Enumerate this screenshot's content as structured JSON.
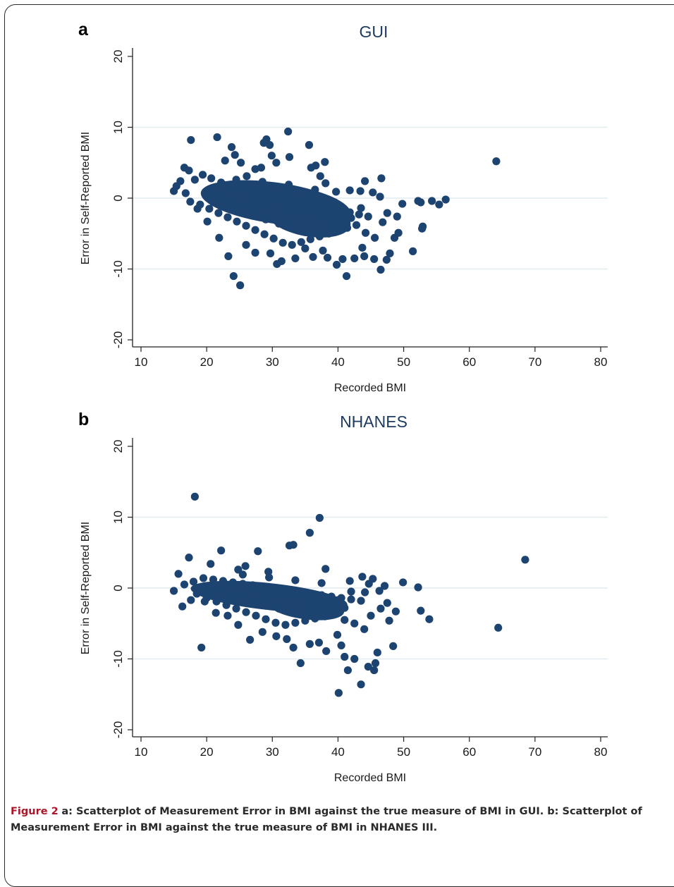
{
  "caption": {
    "figure_label": "Figure 2",
    "text": "a: Scatterplot of Measurement Error in BMI against the true measure of BMI in GUI. b: Scatterplot of Measurement Error in BMI against the true measure of BMI in NHANES III."
  },
  "colors": {
    "marker": "#1d4470",
    "title": "#1d3a5f",
    "grid": "#e2ecef",
    "figure_label": "#a8182a"
  },
  "chart_data": [
    {
      "type": "scatter",
      "panel_label": "a",
      "title": "GUI",
      "xlabel": "Recorded BMI",
      "ylabel": "Error in Self-Reported BMI",
      "xlim": [
        10,
        80
      ],
      "ylim": [
        -20,
        20
      ],
      "xticks": [
        10,
        20,
        30,
        40,
        50,
        60,
        70,
        80
      ],
      "yticks": [
        -20,
        -10,
        0,
        10,
        20
      ],
      "grid": "horizontal at y ticks",
      "points": [
        [
          15.0,
          1.0
        ],
        [
          15.4,
          1.7
        ],
        [
          16.0,
          2.4
        ],
        [
          16.6,
          4.3
        ],
        [
          17.3,
          3.9
        ],
        [
          17.6,
          8.2
        ],
        [
          21.6,
          8.6
        ],
        [
          22.8,
          5.3
        ],
        [
          23.8,
          7.2
        ],
        [
          24.3,
          6.1
        ],
        [
          25.2,
          5.0
        ],
        [
          26.1,
          3.1
        ],
        [
          27.4,
          4.1
        ],
        [
          28.3,
          4.3
        ],
        [
          28.7,
          7.8
        ],
        [
          29.1,
          8.3
        ],
        [
          29.6,
          7.5
        ],
        [
          29.9,
          6.0
        ],
        [
          30.6,
          5.0
        ],
        [
          32.4,
          9.4
        ],
        [
          32.6,
          5.8
        ],
        [
          35.6,
          7.5
        ],
        [
          35.9,
          4.3
        ],
        [
          36.6,
          4.6
        ],
        [
          37.3,
          3.1
        ],
        [
          38.0,
          5.1
        ],
        [
          38.1,
          2.1
        ],
        [
          39.7,
          0.9
        ],
        [
          41.8,
          1.1
        ],
        [
          43.4,
          1.0
        ],
        [
          44.1,
          2.4
        ],
        [
          45.3,
          0.8
        ],
        [
          46.4,
          0.2
        ],
        [
          46.6,
          2.8
        ],
        [
          47.5,
          -2.1
        ],
        [
          49.0,
          -2.6
        ],
        [
          49.8,
          -0.8
        ],
        [
          52.2,
          -0.4
        ],
        [
          52.6,
          -0.6
        ],
        [
          52.8,
          -4.3
        ],
        [
          52.9,
          -4.0
        ],
        [
          54.3,
          -0.4
        ],
        [
          55.4,
          -0.9
        ],
        [
          56.4,
          -0.2
        ],
        [
          64.1,
          5.2
        ],
        [
          51.4,
          -7.5
        ],
        [
          49.2,
          -4.9
        ],
        [
          48.6,
          -5.6
        ],
        [
          47.9,
          -7.8
        ],
        [
          47.4,
          -8.7
        ],
        [
          46.5,
          -10.1
        ],
        [
          45.5,
          -8.6
        ],
        [
          44.0,
          -8.2
        ],
        [
          43.7,
          -7.0
        ],
        [
          42.5,
          -8.5
        ],
        [
          41.3,
          -11.0
        ],
        [
          40.7,
          -8.6
        ],
        [
          39.8,
          -9.4
        ],
        [
          38.4,
          -8.4
        ],
        [
          37.7,
          -7.4
        ],
        [
          36.2,
          -8.3
        ],
        [
          35.0,
          -7.1
        ],
        [
          33.5,
          -8.5
        ],
        [
          31.4,
          -8.9
        ],
        [
          30.7,
          -9.3
        ],
        [
          29.7,
          -7.8
        ],
        [
          27.4,
          -7.7
        ],
        [
          26.0,
          -6.6
        ],
        [
          24.1,
          -11.0
        ],
        [
          25.1,
          -12.3
        ],
        [
          23.3,
          -8.2
        ],
        [
          21.9,
          -5.6
        ],
        [
          20.1,
          -3.3
        ],
        [
          18.6,
          -1.5
        ],
        [
          17.5,
          -0.5
        ],
        [
          16.8,
          0.7
        ],
        [
          18.2,
          2.6
        ],
        [
          19.4,
          3.3
        ],
        [
          20.7,
          2.8
        ],
        [
          22.2,
          2.2
        ],
        [
          23.6,
          1.9
        ],
        [
          25.0,
          1.6
        ],
        [
          26.4,
          1.3
        ],
        [
          27.8,
          1.0
        ],
        [
          29.2,
          0.7
        ],
        [
          30.6,
          0.4
        ],
        [
          32.0,
          0.1
        ],
        [
          33.4,
          -0.2
        ],
        [
          34.8,
          -0.5
        ],
        [
          36.2,
          -0.8
        ],
        [
          37.6,
          -1.1
        ],
        [
          39.0,
          -1.4
        ],
        [
          40.4,
          -1.7
        ],
        [
          41.8,
          -2.0
        ],
        [
          43.2,
          -2.3
        ],
        [
          44.6,
          -2.6
        ],
        [
          19.0,
          -0.9
        ],
        [
          20.4,
          -1.5
        ],
        [
          21.8,
          -2.1
        ],
        [
          23.2,
          -2.7
        ],
        [
          24.6,
          -3.3
        ],
        [
          26.0,
          -3.9
        ],
        [
          27.4,
          -4.5
        ],
        [
          28.8,
          -5.1
        ],
        [
          30.2,
          -5.7
        ],
        [
          31.6,
          -6.3
        ],
        [
          33.0,
          -6.6
        ],
        [
          34.4,
          -6.2
        ],
        [
          35.8,
          -5.8
        ],
        [
          37.2,
          -5.4
        ],
        [
          38.6,
          -5.0
        ],
        [
          40.0,
          -4.6
        ],
        [
          41.4,
          -4.2
        ],
        [
          42.8,
          -3.8
        ],
        [
          44.2,
          -4.9
        ],
        [
          45.6,
          -5.6
        ],
        [
          46.8,
          -3.4
        ],
        [
          20.0,
          0.5
        ],
        [
          22.0,
          0.2
        ],
        [
          24.0,
          -0.1
        ],
        [
          26.0,
          -0.4
        ],
        [
          28.0,
          -0.7
        ],
        [
          30.0,
          -1.0
        ],
        [
          32.0,
          -1.3
        ],
        [
          34.0,
          -1.6
        ],
        [
          36.0,
          -1.9
        ],
        [
          38.0,
          -2.2
        ],
        [
          40.0,
          -2.5
        ],
        [
          42.0,
          -2.8
        ],
        [
          21.0,
          -0.6
        ],
        [
          23.0,
          -1.2
        ],
        [
          25.0,
          -1.8
        ],
        [
          27.0,
          -2.4
        ],
        [
          29.0,
          -3.0
        ],
        [
          31.0,
          -3.6
        ],
        [
          33.0,
          -4.2
        ],
        [
          35.0,
          -4.8
        ],
        [
          37.0,
          -3.4
        ],
        [
          39.0,
          -3.0
        ],
        [
          41.0,
          -3.7
        ],
        [
          20.5,
          1.3
        ],
        [
          24.5,
          2.6
        ],
        [
          28.5,
          2.3
        ],
        [
          32.5,
          1.9
        ],
        [
          36.5,
          1.2
        ],
        [
          27.0,
          0.8
        ],
        [
          31.5,
          -0.2
        ],
        [
          35.5,
          0.3
        ],
        [
          39.5,
          -0.6
        ],
        [
          43.5,
          -1.4
        ]
      ]
    },
    {
      "type": "scatter",
      "panel_label": "b",
      "title": "NHANES",
      "xlabel": "Recorded BMI",
      "ylabel": "Error in Self-Reported BMI",
      "xlim": [
        10,
        80
      ],
      "ylim": [
        -20,
        20
      ],
      "xticks": [
        10,
        20,
        30,
        40,
        50,
        60,
        70,
        80
      ],
      "yticks": [
        -20,
        -10,
        0,
        10,
        20
      ],
      "grid": "horizontal at y ticks",
      "points": [
        [
          15.0,
          -0.4
        ],
        [
          15.7,
          2.0
        ],
        [
          16.3,
          -2.6
        ],
        [
          17.3,
          4.3
        ],
        [
          17.6,
          -1.7
        ],
        [
          18.2,
          12.9
        ],
        [
          19.2,
          -8.4
        ],
        [
          20.6,
          3.4
        ],
        [
          22.2,
          5.3
        ],
        [
          24.8,
          2.6
        ],
        [
          25.9,
          3.1
        ],
        [
          27.8,
          5.2
        ],
        [
          29.4,
          2.3
        ],
        [
          32.6,
          6.0
        ],
        [
          33.2,
          6.1
        ],
        [
          35.7,
          7.8
        ],
        [
          37.2,
          9.9
        ],
        [
          38.1,
          2.7
        ],
        [
          41.8,
          1.0
        ],
        [
          43.7,
          1.6
        ],
        [
          44.1,
          -0.6
        ],
        [
          44.7,
          0.6
        ],
        [
          45.3,
          1.3
        ],
        [
          46.3,
          -0.4
        ],
        [
          47.1,
          0.3
        ],
        [
          49.9,
          0.8
        ],
        [
          52.2,
          0.1
        ],
        [
          48.8,
          -3.3
        ],
        [
          52.6,
          -3.2
        ],
        [
          53.9,
          -4.4
        ],
        [
          64.4,
          -5.6
        ],
        [
          68.5,
          4.0
        ],
        [
          48.4,
          -8.2
        ],
        [
          47.8,
          -4.6
        ],
        [
          46.0,
          -9.1
        ],
        [
          45.7,
          -10.6
        ],
        [
          45.5,
          -11.6
        ],
        [
          44.6,
          -11.1
        ],
        [
          43.5,
          -13.6
        ],
        [
          42.5,
          -10.0
        ],
        [
          41.5,
          -11.6
        ],
        [
          41.0,
          -9.7
        ],
        [
          40.1,
          -14.8
        ],
        [
          40.5,
          -8.1
        ],
        [
          39.9,
          -6.6
        ],
        [
          38.2,
          -8.9
        ],
        [
          37.1,
          -7.7
        ],
        [
          35.7,
          -7.9
        ],
        [
          34.3,
          -10.6
        ],
        [
          33.2,
          -8.4
        ],
        [
          32.2,
          -7.2
        ],
        [
          30.6,
          -6.8
        ],
        [
          28.5,
          -6.2
        ],
        [
          26.6,
          -7.3
        ],
        [
          24.8,
          -5.2
        ],
        [
          23.2,
          -3.9
        ],
        [
          21.4,
          -3.5
        ],
        [
          19.7,
          -1.9
        ],
        [
          16.6,
          0.5
        ],
        [
          18.0,
          0.9
        ],
        [
          19.5,
          1.4
        ],
        [
          21.0,
          1.2
        ],
        [
          22.5,
          1.0
        ],
        [
          24.0,
          0.8
        ],
        [
          25.5,
          0.6
        ],
        [
          27.0,
          0.4
        ],
        [
          28.5,
          0.2
        ],
        [
          30.0,
          0.0
        ],
        [
          31.5,
          -0.2
        ],
        [
          33.0,
          -0.4
        ],
        [
          34.5,
          -0.6
        ],
        [
          36.0,
          -0.8
        ],
        [
          37.5,
          -1.0
        ],
        [
          39.0,
          -1.2
        ],
        [
          40.5,
          -1.4
        ],
        [
          42.0,
          -1.6
        ],
        [
          43.5,
          -1.8
        ],
        [
          18.5,
          -0.8
        ],
        [
          20.0,
          -1.4
        ],
        [
          21.5,
          -1.9
        ],
        [
          23.0,
          -2.4
        ],
        [
          24.5,
          -2.9
        ],
        [
          26.0,
          -3.4
        ],
        [
          27.5,
          -3.9
        ],
        [
          29.0,
          -4.4
        ],
        [
          30.5,
          -4.9
        ],
        [
          32.0,
          -5.2
        ],
        [
          33.5,
          -4.9
        ],
        [
          35.0,
          -4.6
        ],
        [
          36.5,
          -4.3
        ],
        [
          38.0,
          -4.0
        ],
        [
          39.5,
          -3.7
        ],
        [
          41.0,
          -4.5
        ],
        [
          42.5,
          -5.0
        ],
        [
          44.0,
          -5.8
        ],
        [
          45.0,
          -3.9
        ],
        [
          46.5,
          -2.9
        ],
        [
          47.5,
          -2.1
        ],
        [
          20.0,
          0.3
        ],
        [
          22.0,
          0.1
        ],
        [
          24.0,
          -0.1
        ],
        [
          26.0,
          -0.3
        ],
        [
          28.0,
          -0.5
        ],
        [
          30.0,
          -0.7
        ],
        [
          32.0,
          -0.9
        ],
        [
          34.0,
          -1.1
        ],
        [
          36.0,
          -1.3
        ],
        [
          38.0,
          -1.5
        ],
        [
          40.0,
          -1.7
        ],
        [
          21.0,
          -0.9
        ],
        [
          23.0,
          -1.3
        ],
        [
          25.0,
          -1.7
        ],
        [
          27.0,
          -2.1
        ],
        [
          29.0,
          -2.5
        ],
        [
          31.0,
          -2.9
        ],
        [
          33.0,
          -3.3
        ],
        [
          35.0,
          -3.1
        ],
        [
          37.0,
          -2.7
        ],
        [
          39.0,
          -2.6
        ],
        [
          41.0,
          -2.8
        ],
        [
          25.5,
          1.9
        ],
        [
          29.5,
          1.5
        ],
        [
          33.5,
          1.1
        ],
        [
          37.5,
          0.7
        ],
        [
          42.0,
          -0.5
        ]
      ]
    }
  ]
}
